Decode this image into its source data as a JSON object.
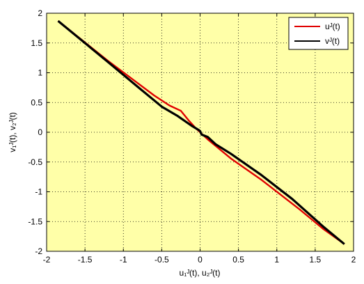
{
  "chart_data": {
    "type": "line",
    "xlabel": "u₁ᴶ(t), u₂ᴶ(t)",
    "ylabel": "v₁ᴶ(t), v₂ᴶ(t)",
    "xlim": [
      -2,
      2
    ],
    "ylim": [
      -2,
      2
    ],
    "x_ticks": [
      -2,
      -1.5,
      -1,
      -0.5,
      0,
      0.5,
      1,
      1.5,
      2
    ],
    "y_ticks": [
      -2,
      -1.5,
      -1,
      -0.5,
      0,
      0.5,
      1,
      1.5,
      2
    ],
    "grid": "dotted",
    "legend_position": "top-right",
    "plot_background": "#ffffa8",
    "series": [
      {
        "name": "uᴶ(t)",
        "color": "#e00000",
        "points": [
          [
            -1.85,
            1.87
          ],
          [
            -1.2,
            1.2
          ],
          [
            -0.6,
            0.62
          ],
          [
            -0.4,
            0.45
          ],
          [
            -0.25,
            0.36
          ],
          [
            -0.15,
            0.2
          ],
          [
            -0.05,
            0.06
          ],
          [
            0.0,
            0.0
          ],
          [
            0.1,
            -0.12
          ],
          [
            0.25,
            -0.28
          ],
          [
            0.4,
            -0.44
          ],
          [
            0.8,
            -0.8
          ],
          [
            1.3,
            -1.3
          ],
          [
            1.6,
            -1.62
          ],
          [
            1.88,
            -1.88
          ]
        ]
      },
      {
        "name": "vᴶ(t)",
        "color": "#000000",
        "points": [
          [
            -1.85,
            1.87
          ],
          [
            -1.2,
            1.18
          ],
          [
            -0.8,
            0.75
          ],
          [
            -0.5,
            0.43
          ],
          [
            -0.3,
            0.28
          ],
          [
            -0.1,
            0.1
          ],
          [
            -0.02,
            0.04
          ],
          [
            0.0,
            0.02
          ],
          [
            0.02,
            -0.04
          ],
          [
            0.1,
            -0.08
          ],
          [
            0.2,
            -0.2
          ],
          [
            0.4,
            -0.36
          ],
          [
            0.8,
            -0.72
          ],
          [
            1.2,
            -1.12
          ],
          [
            1.6,
            -1.58
          ],
          [
            1.88,
            -1.88
          ]
        ]
      }
    ]
  }
}
